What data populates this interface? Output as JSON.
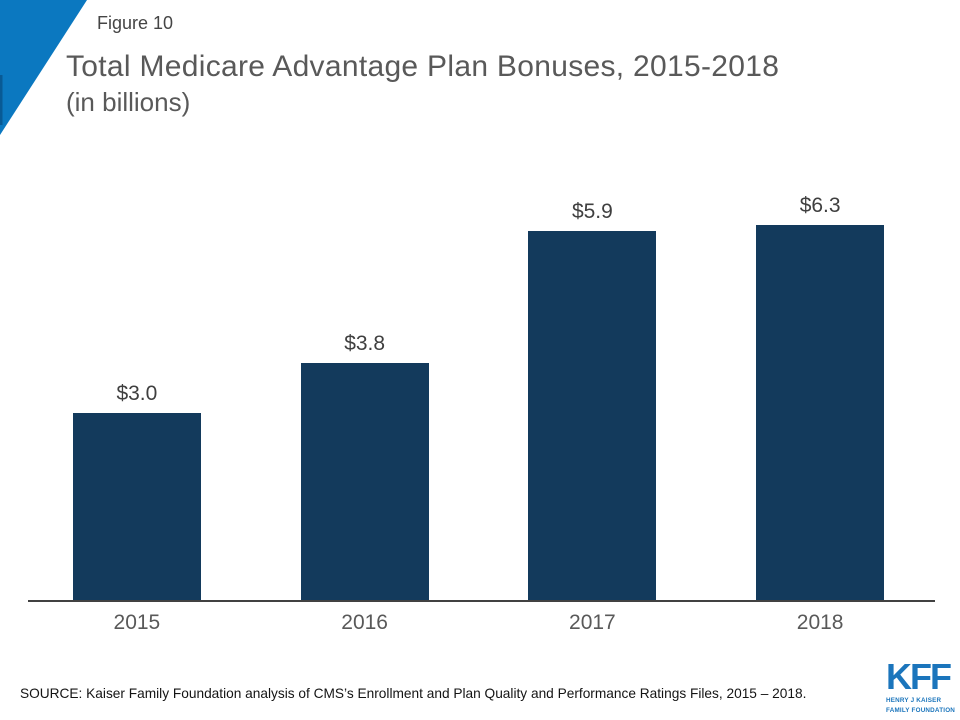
{
  "slide": {
    "figure_label": "Figure 10",
    "title": "Total Medicare Advantage Plan Bonuses, 2015-2018",
    "subtitle": "(in billions)",
    "source": "SOURCE: Kaiser Family Foundation analysis of CMS’s Enrollment and Plan Quality and Performance Ratings Files, 2015 – 2018."
  },
  "logo": {
    "acronym": "KFF",
    "name_line1": "HENRY J KAISER",
    "name_line2": "FAMILY FOUNDATION",
    "color": "#1b75bc"
  },
  "colors": {
    "bar": "#133a5c",
    "corner_triangle": "#0b78c0",
    "corner_accent_bar": "#085a95",
    "axis_line": "#414141",
    "title_text": "#595959",
    "value_label_text": "#3f3f3f",
    "year_label_text": "#595959",
    "source_text": "#141414"
  },
  "chart_data": {
    "type": "bar",
    "title": "Total Medicare Advantage Plan Bonuses, 2015-2018",
    "subtitle": "(in billions)",
    "categories": [
      "2015",
      "2016",
      "2017",
      "2018"
    ],
    "values": [
      3.0,
      3.8,
      5.9,
      6.3
    ],
    "value_labels": [
      "$3.0",
      "$3.8",
      "$5.9",
      "$6.3"
    ],
    "xlabel": "",
    "ylabel": "",
    "ylim": [
      0,
      6.5
    ],
    "grid": false,
    "legend": false,
    "bar_color": "#133a5c"
  }
}
